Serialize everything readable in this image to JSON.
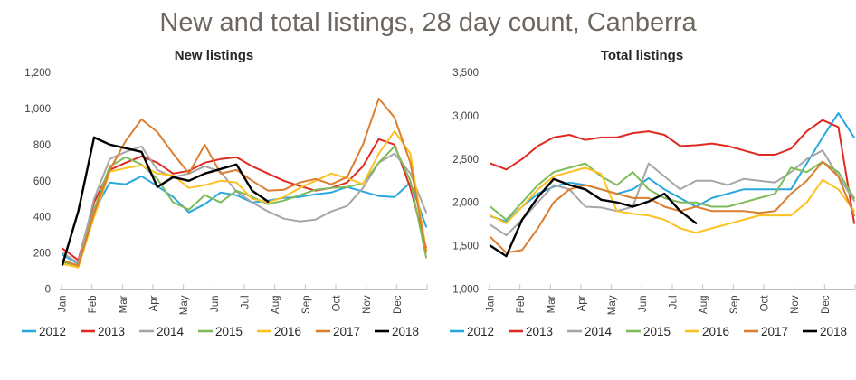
{
  "page_title": "New and total listings, 28 day count, Canberra",
  "title_color": "#6E675F",
  "months": [
    "Jan",
    "Feb",
    "Mar",
    "Apr",
    "May",
    "Jun",
    "Jul",
    "Aug",
    "Sep",
    "Oct",
    "Nov",
    "Dec"
  ],
  "legend": [
    {
      "label": "2012",
      "color": "#29A8E0"
    },
    {
      "label": "2013",
      "color": "#E02A21"
    },
    {
      "label": "2014",
      "color": "#A6A6A6"
    },
    {
      "label": "2015",
      "color": "#7FBB59"
    },
    {
      "label": "2016",
      "color": "#FDC122"
    },
    {
      "label": "2017",
      "color": "#DC7E2F"
    },
    {
      "label": "2018",
      "color": "#000000"
    }
  ],
  "chart_data": [
    {
      "type": "line",
      "title": "New listings",
      "xlabel": "",
      "ylabel": "",
      "ylim": [
        0,
        1200
      ],
      "yticks": [
        0,
        200,
        400,
        600,
        800,
        1000,
        1200
      ],
      "grid": false,
      "legend_position": "bottom",
      "categories": [
        "Jan",
        "Feb",
        "Mar",
        "Apr",
        "May",
        "Jun",
        "Jul",
        "Aug",
        "Sep",
        "Oct",
        "Nov",
        "Dec"
      ],
      "points_per_month": 2,
      "series": [
        {
          "name": "2012",
          "color": "#29A8E0",
          "values": [
            190,
            140,
            430,
            590,
            580,
            625,
            570,
            510,
            425,
            470,
            535,
            520,
            480,
            490,
            505,
            510,
            525,
            535,
            565,
            540,
            515,
            510,
            590,
            345
          ]
        },
        {
          "name": "2013",
          "color": "#E02A21",
          "values": [
            225,
            160,
            480,
            660,
            700,
            735,
            700,
            640,
            655,
            700,
            720,
            730,
            680,
            640,
            600,
            570,
            545,
            560,
            590,
            680,
            830,
            800,
            560,
            230
          ]
        },
        {
          "name": "2014",
          "color": "#A6A6A6",
          "values": [
            200,
            145,
            500,
            720,
            760,
            790,
            660,
            620,
            640,
            680,
            650,
            540,
            480,
            430,
            390,
            375,
            385,
            430,
            460,
            560,
            700,
            750,
            640,
            425
          ]
        },
        {
          "name": "2015",
          "color": "#7FBB59",
          "values": [
            150,
            130,
            440,
            680,
            730,
            690,
            610,
            480,
            440,
            520,
            480,
            545,
            510,
            470,
            490,
            520,
            550,
            560,
            565,
            585,
            700,
            790,
            600,
            175
          ]
        },
        {
          "name": "2016",
          "color": "#FDC122",
          "values": [
            140,
            120,
            400,
            650,
            670,
            685,
            640,
            630,
            560,
            575,
            600,
            590,
            500,
            480,
            510,
            560,
            600,
            640,
            615,
            580,
            750,
            875,
            750,
            215
          ]
        },
        {
          "name": "2017",
          "color": "#DC7E2F",
          "values": [
            160,
            130,
            420,
            660,
            820,
            940,
            870,
            750,
            640,
            800,
            640,
            660,
            600,
            545,
            550,
            590,
            610,
            580,
            620,
            800,
            1055,
            950,
            700,
            205
          ]
        },
        {
          "name": "2018",
          "color": "#000000",
          "values": [
            135,
            430,
            840,
            800,
            780,
            760,
            565,
            620,
            600,
            640,
            665,
            690,
            545,
            485
          ]
        }
      ]
    },
    {
      "type": "line",
      "title": "Total listings",
      "xlabel": "",
      "ylabel": "",
      "ylim": [
        1000,
        3500
      ],
      "yticks": [
        1000,
        1500,
        2000,
        2500,
        3000,
        3500
      ],
      "grid": false,
      "legend_position": "bottom",
      "categories": [
        "Jan",
        "Feb",
        "Mar",
        "Apr",
        "May",
        "Jun",
        "Jul",
        "Aug",
        "Sep",
        "Oct",
        "Nov",
        "Dec"
      ],
      "points_per_month": 2,
      "series": [
        {
          "name": "2012",
          "color": "#29A8E0",
          "values": [
            1840,
            1780,
            1950,
            2100,
            2180,
            2230,
            2200,
            2150,
            2100,
            2150,
            2280,
            2150,
            2050,
            1950,
            2050,
            2100,
            2150,
            2150,
            2150,
            2150,
            2450,
            2750,
            3030,
            2750
          ]
        },
        {
          "name": "2013",
          "color": "#E02A21",
          "values": [
            2450,
            2380,
            2500,
            2650,
            2750,
            2780,
            2720,
            2750,
            2750,
            2800,
            2820,
            2780,
            2650,
            2660,
            2680,
            2650,
            2600,
            2550,
            2550,
            2620,
            2820,
            2950,
            2870,
            1760
          ]
        },
        {
          "name": "2014",
          "color": "#A6A6A6",
          "values": [
            1740,
            1620,
            1800,
            2000,
            2200,
            2150,
            1950,
            1940,
            1900,
            1950,
            2450,
            2300,
            2150,
            2250,
            2250,
            2200,
            2270,
            2250,
            2230,
            2350,
            2500,
            2600,
            2300,
            2020
          ]
        },
        {
          "name": "2015",
          "color": "#7FBB59",
          "values": [
            1950,
            1800,
            2000,
            2200,
            2350,
            2400,
            2450,
            2300,
            2200,
            2350,
            2150,
            2050,
            2000,
            2000,
            1950,
            1950,
            2000,
            2050,
            2100,
            2400,
            2350,
            2470,
            2350,
            2050
          ]
        },
        {
          "name": "2016",
          "color": "#FDC122",
          "values": [
            1850,
            1760,
            1950,
            2150,
            2300,
            2350,
            2400,
            2330,
            1900,
            1870,
            1850,
            1800,
            1700,
            1650,
            1700,
            1750,
            1800,
            1850,
            1850,
            1850,
            2000,
            2260,
            2150,
            1900
          ]
        },
        {
          "name": "2017",
          "color": "#DC7E2F",
          "values": [
            1600,
            1420,
            1450,
            1700,
            2000,
            2150,
            2200,
            2150,
            2100,
            2050,
            2050,
            1950,
            1900,
            1950,
            1900,
            1900,
            1900,
            1880,
            1900,
            2100,
            2250,
            2470,
            2300,
            1850
          ]
        },
        {
          "name": "2018",
          "color": "#000000",
          "values": [
            1500,
            1380,
            1800,
            2060,
            2270,
            2200,
            2150,
            2030,
            2000,
            1950,
            2010,
            2100,
            1900,
            1760
          ]
        }
      ]
    }
  ]
}
